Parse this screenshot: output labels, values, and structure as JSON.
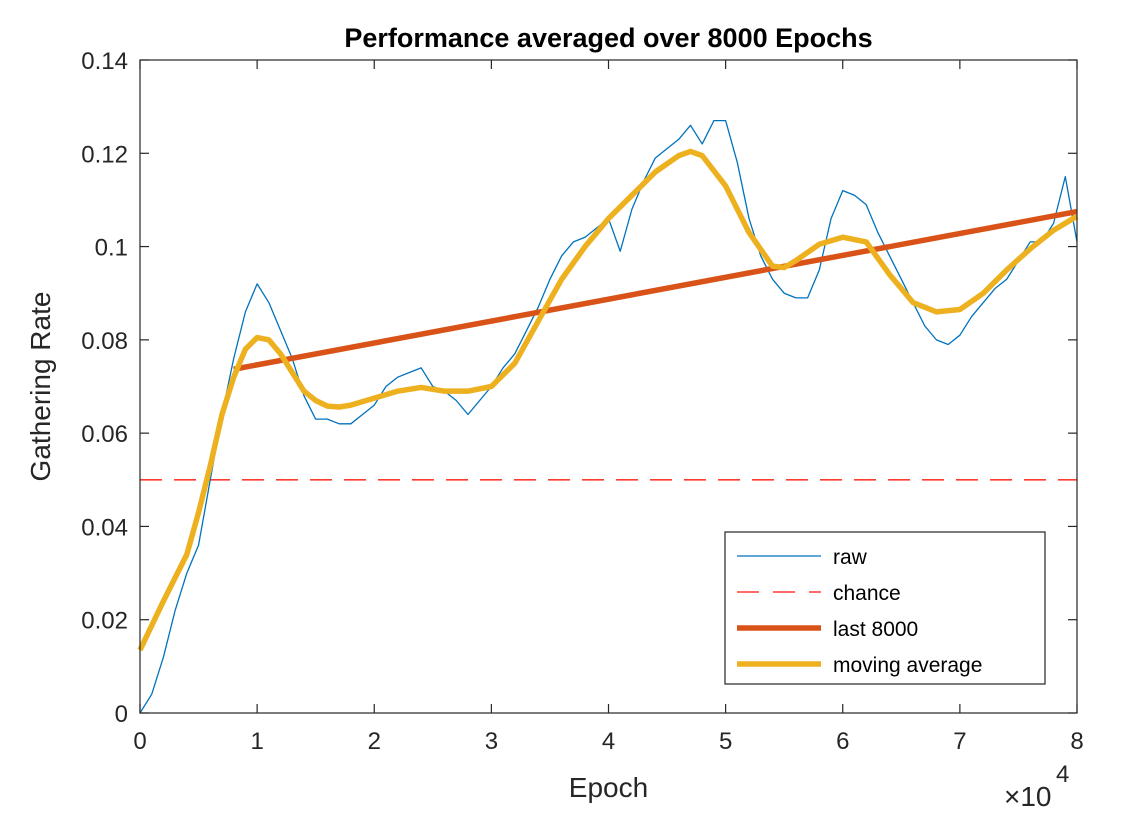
{
  "chart_data": {
    "type": "line",
    "title": "Performance averaged over 8000 Epochs",
    "xlabel": "Epoch",
    "ylabel": "Gathering Rate",
    "x_exponent_label": "×10",
    "x_exponent_power": "4",
    "xlim": [
      0,
      8
    ],
    "ylim": [
      0,
      0.14
    ],
    "xticks": [
      0,
      1,
      2,
      3,
      4,
      5,
      6,
      7,
      8
    ],
    "xtick_labels": [
      "0",
      "1",
      "2",
      "3",
      "4",
      "5",
      "6",
      "7",
      "8"
    ],
    "yticks": [
      0,
      0.02,
      0.04,
      0.06,
      0.08,
      0.1,
      0.12,
      0.14
    ],
    "ytick_labels": [
      "0",
      "0.02",
      "0.04",
      "0.06",
      "0.08",
      "0.1",
      "0.12",
      "0.14"
    ],
    "grid": false,
    "legend_position": "bottom-right",
    "series": [
      {
        "name": "raw",
        "color": "#0072BD",
        "style": "solid-thin",
        "x": [
          0,
          0.1,
          0.2,
          0.3,
          0.4,
          0.5,
          0.6,
          0.7,
          0.8,
          0.9,
          1.0,
          1.1,
          1.2,
          1.3,
          1.4,
          1.5,
          1.6,
          1.7,
          1.8,
          1.9,
          2.0,
          2.1,
          2.2,
          2.3,
          2.4,
          2.5,
          2.6,
          2.7,
          2.8,
          2.9,
          3.0,
          3.1,
          3.2,
          3.3,
          3.4,
          3.5,
          3.6,
          3.7,
          3.8,
          3.9,
          4.0,
          4.1,
          4.2,
          4.3,
          4.4,
          4.5,
          4.6,
          4.7,
          4.8,
          4.9,
          5.0,
          5.1,
          5.2,
          5.3,
          5.4,
          5.5,
          5.6,
          5.7,
          5.8,
          5.9,
          6.0,
          6.1,
          6.2,
          6.3,
          6.4,
          6.5,
          6.6,
          6.7,
          6.8,
          6.9,
          7.0,
          7.1,
          7.2,
          7.3,
          7.4,
          7.5,
          7.6,
          7.7,
          7.8,
          7.9,
          8.0
        ],
        "values": [
          0.0,
          0.004,
          0.012,
          0.022,
          0.03,
          0.036,
          0.05,
          0.064,
          0.076,
          0.086,
          0.092,
          0.088,
          0.082,
          0.076,
          0.068,
          0.063,
          0.063,
          0.062,
          0.062,
          0.064,
          0.066,
          0.07,
          0.072,
          0.073,
          0.074,
          0.07,
          0.069,
          0.067,
          0.064,
          0.067,
          0.07,
          0.074,
          0.077,
          0.082,
          0.087,
          0.093,
          0.098,
          0.101,
          0.102,
          0.104,
          0.106,
          0.099,
          0.108,
          0.114,
          0.119,
          0.121,
          0.123,
          0.126,
          0.122,
          0.127,
          0.127,
          0.118,
          0.106,
          0.098,
          0.093,
          0.09,
          0.089,
          0.089,
          0.095,
          0.106,
          0.112,
          0.111,
          0.109,
          0.103,
          0.098,
          0.093,
          0.088,
          0.083,
          0.08,
          0.079,
          0.081,
          0.085,
          0.088,
          0.091,
          0.093,
          0.097,
          0.101,
          0.101,
          0.105,
          0.115,
          0.101
        ]
      },
      {
        "name": "chance",
        "color": "#FF3B30",
        "style": "dashed",
        "x": [
          0,
          8
        ],
        "values": [
          0.05,
          0.05
        ]
      },
      {
        "name": "last 8000",
        "color": "#D95319",
        "style": "solid-thick",
        "x": [
          0.8,
          8
        ],
        "values": [
          0.0737,
          0.1075
        ]
      },
      {
        "name": "moving average",
        "color": "#EDB120",
        "style": "solid-thick",
        "x": [
          0,
          0.2,
          0.4,
          0.5,
          0.6,
          0.7,
          0.8,
          0.9,
          1.0,
          1.1,
          1.2,
          1.3,
          1.4,
          1.5,
          1.6,
          1.7,
          1.8,
          2.0,
          2.2,
          2.4,
          2.6,
          2.8,
          3.0,
          3.2,
          3.4,
          3.6,
          3.8,
          4.0,
          4.2,
          4.4,
          4.6,
          4.7,
          4.8,
          5.0,
          5.2,
          5.4,
          5.5,
          5.6,
          5.8,
          6.0,
          6.2,
          6.4,
          6.6,
          6.8,
          7.0,
          7.2,
          7.4,
          7.6,
          7.8,
          8.0
        ],
        "values": [
          0.0135,
          0.024,
          0.034,
          0.043,
          0.053,
          0.064,
          0.072,
          0.078,
          0.0805,
          0.08,
          0.077,
          0.073,
          0.069,
          0.067,
          0.0658,
          0.0656,
          0.066,
          0.0675,
          0.069,
          0.0698,
          0.069,
          0.069,
          0.07,
          0.075,
          0.084,
          0.093,
          0.1,
          0.106,
          0.111,
          0.116,
          0.1195,
          0.1204,
          0.1195,
          0.113,
          0.103,
          0.0958,
          0.0955,
          0.097,
          0.1005,
          0.102,
          0.101,
          0.094,
          0.088,
          0.086,
          0.0865,
          0.09,
          0.095,
          0.0995,
          0.1035,
          0.1065
        ]
      }
    ]
  }
}
